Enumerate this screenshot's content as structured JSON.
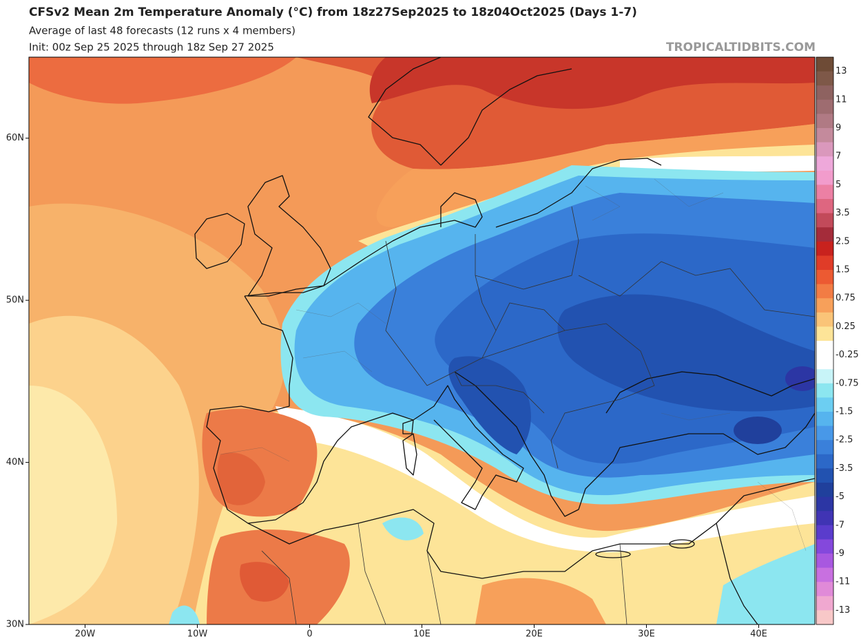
{
  "title": "CFSv2 Mean 2m Temperature Anomaly (°C) from 18z27Sep2025 to 18z04Oct2025 (Days 1-7)",
  "subtitle": "Average of last 48 forecasts (12 runs x 4 members)",
  "init": "Init: 00z Sep 25 2025 through 18z Sep 27 2025",
  "watermark": "TROPICALTIDBITS.COM",
  "map": {
    "xlim": [
      -25,
      45
    ],
    "ylim": [
      30,
      65
    ],
    "xticks": [
      {
        "value": -20,
        "label": "20W"
      },
      {
        "value": -10,
        "label": "10W"
      },
      0,
      {
        "value": 10,
        "label": "10E"
      },
      {
        "value": 20,
        "label": "20E"
      },
      {
        "value": 30,
        "label": "30E"
      },
      {
        "value": 40,
        "label": "40E"
      }
    ],
    "yticks": [
      {
        "value": 30,
        "label": "30N"
      },
      {
        "value": 40,
        "label": "40N"
      },
      {
        "value": 50,
        "label": "50N"
      },
      {
        "value": 60,
        "label": "60N"
      }
    ]
  },
  "colorbar": {
    "labels": [
      13,
      11,
      9,
      7,
      5,
      3.5,
      2.5,
      1.5,
      0.75,
      0.25,
      -0.25,
      -0.75,
      -1.5,
      -2.5,
      -3.5,
      -5,
      -7,
      -9,
      -11,
      -13
    ],
    "colors": [
      "#6e4b36",
      "#7e5848",
      "#8e6260",
      "#9e6c70",
      "#b07a84",
      "#c48a9c",
      "#da98bc",
      "#eea8da",
      "#f29ccc",
      "#ec80a4",
      "#de6680",
      "#c24a5a",
      "#a42c3a",
      "#c8221e",
      "#e03c28",
      "#ec5a32",
      "#f27c44",
      "#f7a05a",
      "#fac478",
      "#fde498",
      "#ffffff",
      "#ffffff",
      "#c8f4f8",
      "#8ce6f0",
      "#6ccef2",
      "#56b4ee",
      "#4898e8",
      "#3a80da",
      "#2c68c8",
      "#2252b0",
      "#20409c",
      "#2c36a4",
      "#4034b4",
      "#5a3ccc",
      "#8448dc",
      "#a858e0",
      "#c870e0",
      "#e08ad8",
      "#f0a8d0",
      "#f8c8c8"
    ]
  }
}
